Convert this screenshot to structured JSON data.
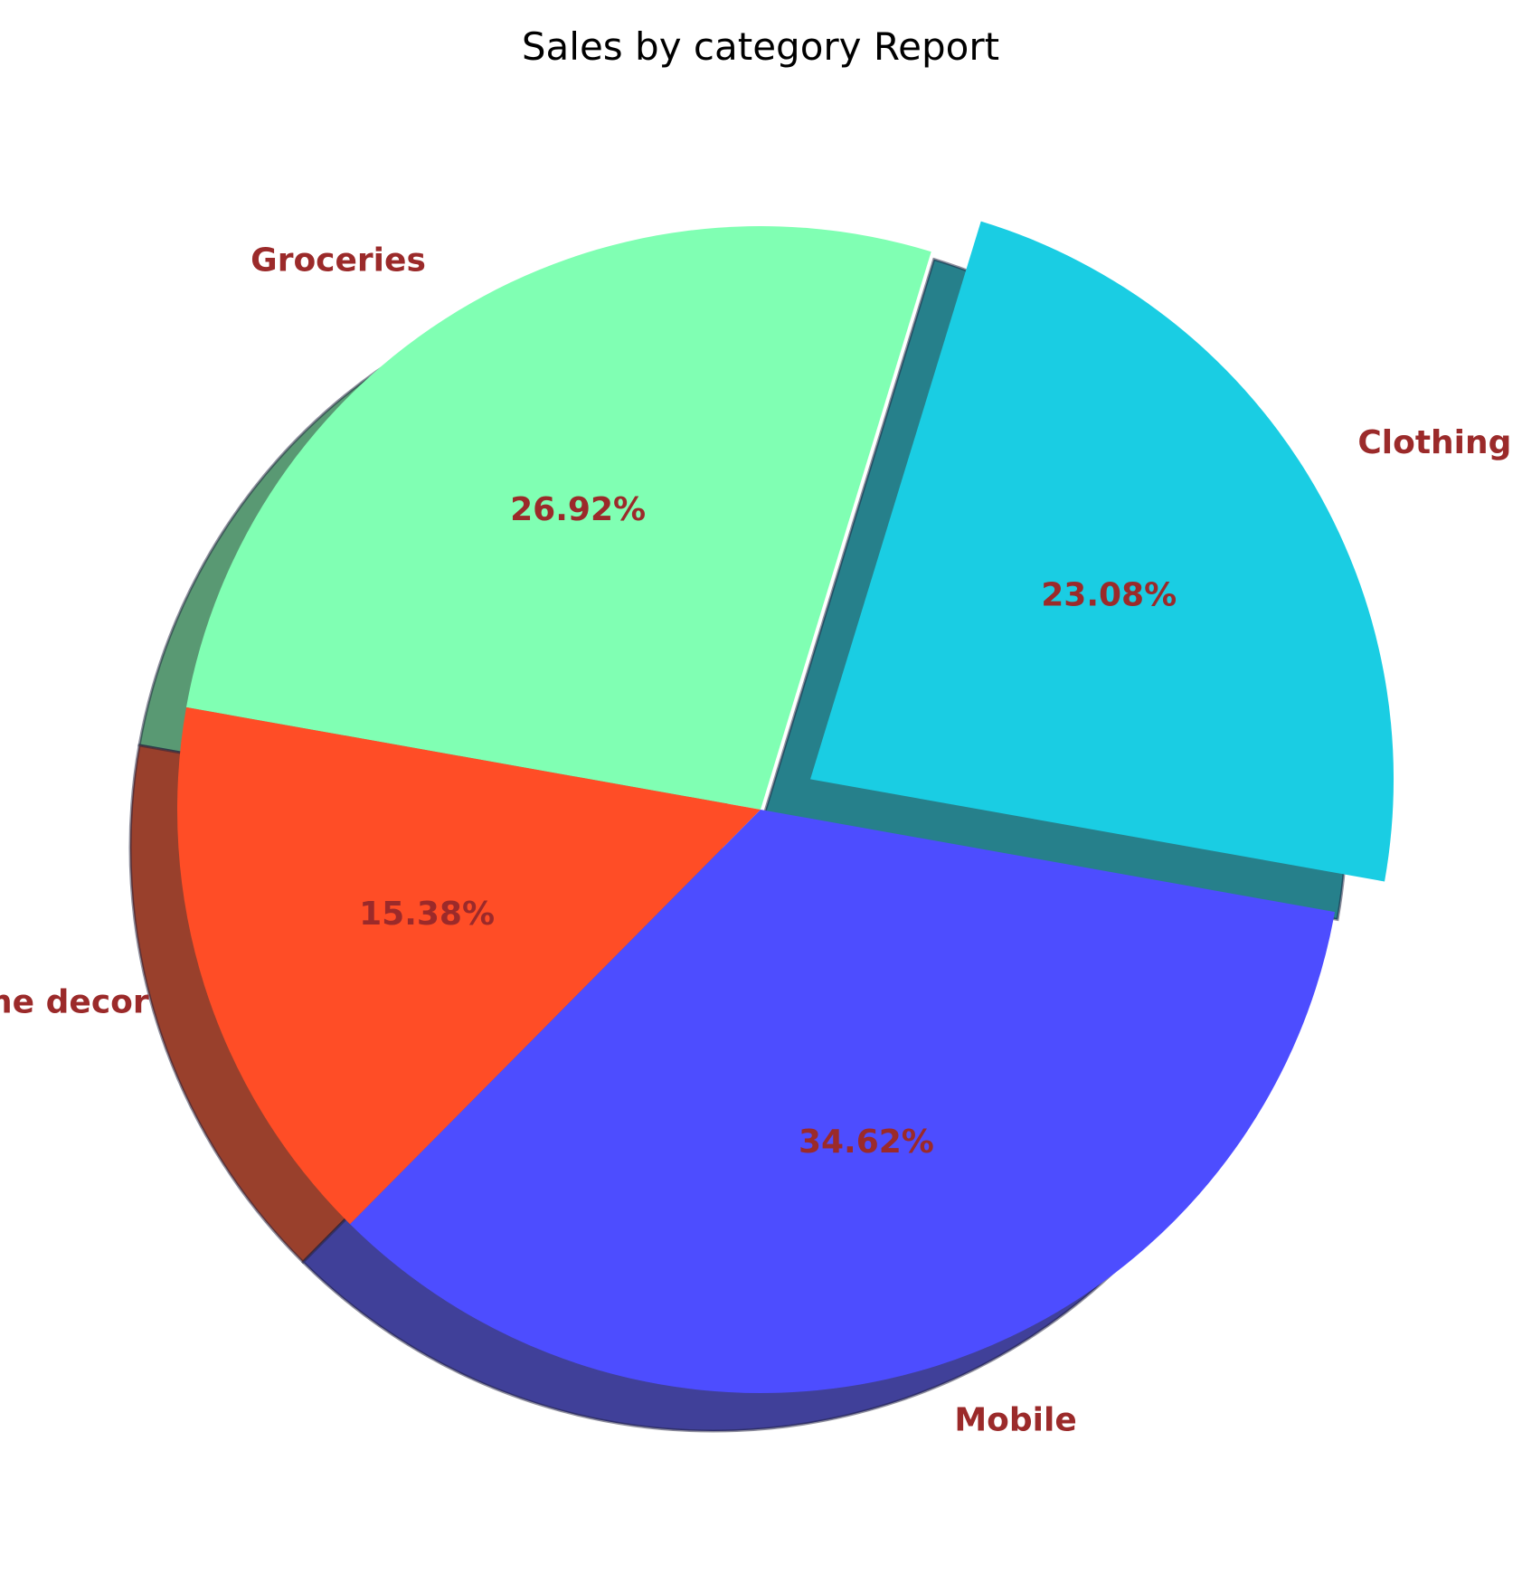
{
  "chart_data": {
    "type": "pie",
    "title": "Sales by category Report",
    "categories": [
      "Clothing",
      "Groceries",
      "Home decor",
      "Mobile"
    ],
    "values": [
      23.08,
      26.92,
      15.38,
      34.62
    ],
    "percent_labels": [
      "23.08%",
      "26.92%",
      "15.38%",
      "34.62%"
    ],
    "colors": [
      "#1ACDE3",
      "#80FFB3",
      "#FF4D26",
      "#4D4DFF"
    ],
    "exploded": [
      "Clothing"
    ],
    "shadow": true,
    "label_color": "#9B2A2A",
    "direction": "counterclockwise"
  }
}
